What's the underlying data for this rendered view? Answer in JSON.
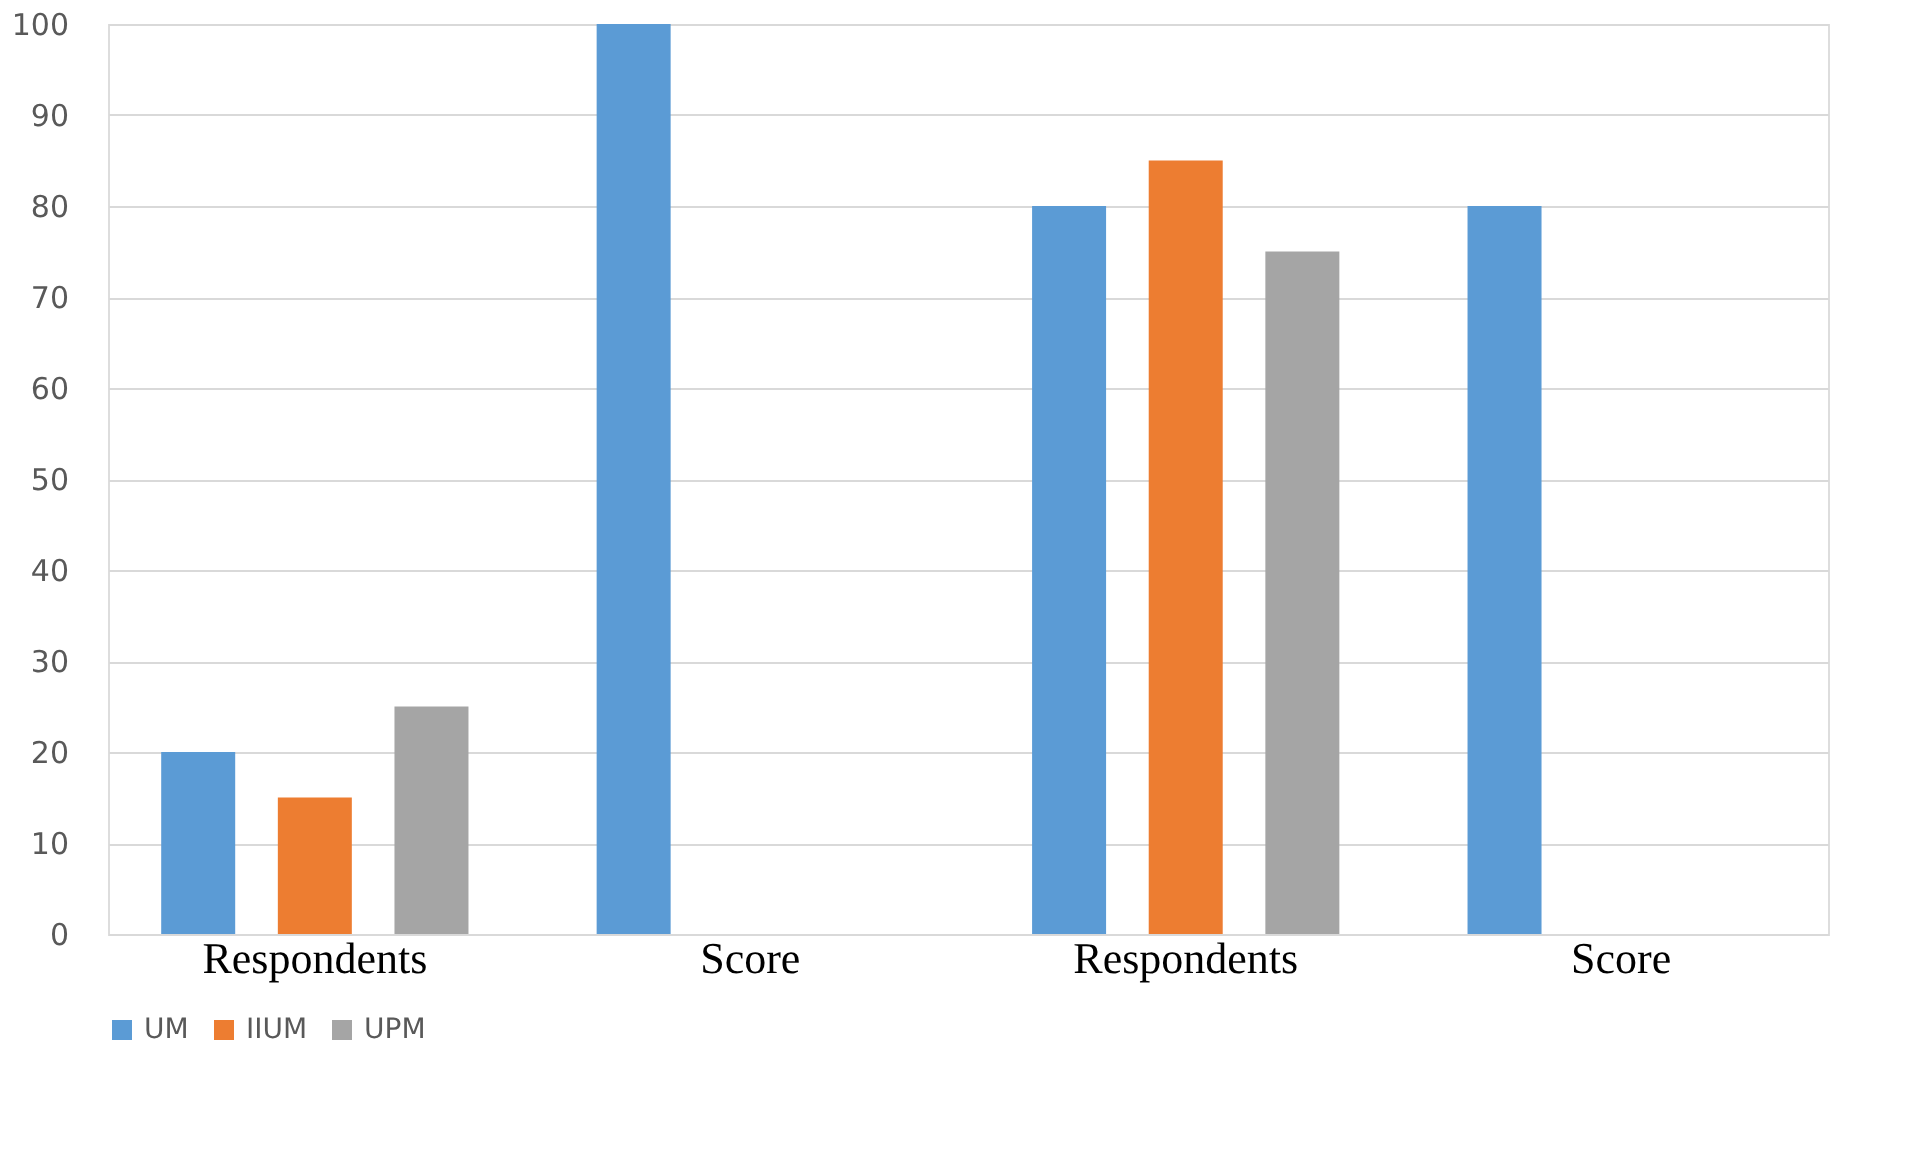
{
  "chart_data": {
    "type": "bar",
    "categories": [
      "Respondents",
      "Score",
      "Respondents",
      "Score"
    ],
    "series": [
      {
        "name": "UM",
        "color": "#5b9bd5",
        "values": [
          20,
          100,
          80,
          80
        ]
      },
      {
        "name": "IIUM",
        "color": "#ed7d31",
        "values": [
          15,
          null,
          85,
          null
        ]
      },
      {
        "name": "UPM",
        "color": "#a5a5a5",
        "values": [
          25,
          null,
          75,
          null
        ]
      }
    ],
    "ylim": [
      0,
      100
    ],
    "yticks": [
      0,
      10,
      20,
      30,
      40,
      50,
      60,
      70,
      80,
      90,
      100
    ],
    "grid": "y",
    "legend": "bottom"
  }
}
